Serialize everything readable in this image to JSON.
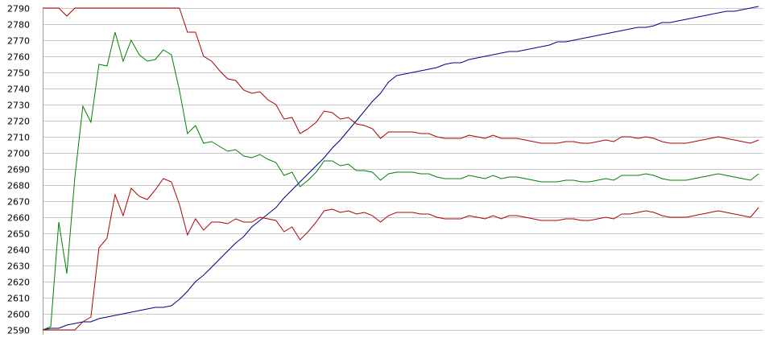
{
  "chart_data": {
    "type": "line",
    "title": "",
    "xlabel": "",
    "ylabel": "",
    "ylim": [
      2590,
      2790
    ],
    "yticks": [
      2590,
      2600,
      2610,
      2620,
      2630,
      2640,
      2650,
      2660,
      2670,
      2680,
      2690,
      2700,
      2710,
      2720,
      2730,
      2740,
      2750,
      2760,
      2770,
      2780,
      2790
    ],
    "grid": "horizontal",
    "legend": "none",
    "x": [
      0,
      1,
      2,
      3,
      4,
      5,
      6,
      7,
      8,
      9,
      10,
      11,
      12,
      13,
      14,
      15,
      16,
      17,
      18,
      19,
      20,
      21,
      22,
      23,
      24,
      25,
      26,
      27,
      28,
      29,
      30,
      31,
      32,
      33,
      34,
      35,
      36,
      37,
      38,
      39,
      40,
      41,
      42,
      43,
      44,
      45,
      46,
      47,
      48,
      49,
      50,
      51,
      52,
      53,
      54,
      55,
      56,
      57,
      58,
      59,
      60,
      61,
      62,
      63,
      64,
      65,
      66,
      67,
      68,
      69,
      70,
      71,
      72,
      73,
      74,
      75,
      76,
      77,
      78,
      79,
      80,
      81,
      82,
      83,
      84,
      85,
      86,
      87,
      88,
      89
    ],
    "series": [
      {
        "color": "#00008b",
        "values": [
          2590,
          2591,
          2591,
          2593,
          2594,
          2595,
          2595,
          2597,
          2598,
          2599,
          2600,
          2601,
          2602,
          2603,
          2604,
          2604,
          2605,
          2609,
          2614,
          2620,
          2624,
          2629,
          2634,
          2639,
          2644,
          2648,
          2654,
          2658,
          2662,
          2666,
          2672,
          2677,
          2682,
          2687,
          2692,
          2697,
          2703,
          2708,
          2714,
          2720,
          2726,
          2732,
          2737,
          2744,
          2748,
          2749,
          2750,
          2751,
          2752,
          2753,
          2755,
          2756,
          2756,
          2758,
          2759,
          2760,
          2761,
          2762,
          2763,
          2763,
          2764,
          2765,
          2766,
          2767,
          2769,
          2769,
          2770,
          2771,
          2772,
          2773,
          2774,
          2775,
          2776,
          2777,
          2778,
          2778,
          2779,
          2781,
          2781,
          2782,
          2783,
          2784,
          2785,
          2786,
          2787,
          2788,
          2788,
          2789,
          2790,
          2791
        ]
      },
      {
        "color": "#b00000",
        "values": [
          2790,
          2790,
          2790,
          2785,
          2790,
          2790,
          2790,
          2790,
          2790,
          2790,
          2790,
          2790,
          2790,
          2790,
          2790,
          2790,
          2790,
          2790,
          2775,
          2775,
          2760,
          2757,
          2751,
          2746,
          2745,
          2739,
          2737,
          2738,
          2733,
          2730,
          2721,
          2722,
          2712,
          2715,
          2719,
          2726,
          2725,
          2721,
          2722,
          2718,
          2717,
          2715,
          2709,
          2713,
          2713,
          2713,
          2713,
          2712,
          2712,
          2710,
          2709,
          2709,
          2709,
          2711,
          2710,
          2709,
          2711,
          2709,
          2709,
          2709,
          2708,
          2707,
          2706,
          2706,
          2706,
          2707,
          2707,
          2706,
          2706,
          2707,
          2708,
          2707,
          2710,
          2710,
          2709,
          2710,
          2709,
          2707,
          2706,
          2706,
          2706,
          2707,
          2708,
          2709,
          2710,
          2709,
          2708,
          2707,
          2706,
          2708
        ]
      },
      {
        "color": "#008000",
        "values": [
          2590,
          2592,
          2657,
          2625,
          2685,
          2729,
          2719,
          2755,
          2754,
          2775,
          2757,
          2770,
          2761,
          2757,
          2758,
          2764,
          2761,
          2739,
          2712,
          2717,
          2706,
          2707,
          2704,
          2701,
          2702,
          2698,
          2697,
          2699,
          2696,
          2694,
          2686,
          2688,
          2679,
          2683,
          2688,
          2695,
          2695,
          2692,
          2693,
          2689,
          2689,
          2688,
          2683,
          2687,
          2688,
          2688,
          2688,
          2687,
          2687,
          2685,
          2684,
          2684,
          2684,
          2686,
          2685,
          2684,
          2686,
          2684,
          2685,
          2685,
          2684,
          2683,
          2682,
          2682,
          2682,
          2683,
          2683,
          2682,
          2682,
          2683,
          2684,
          2683,
          2686,
          2686,
          2686,
          2687,
          2686,
          2684,
          2683,
          2683,
          2683,
          2684,
          2685,
          2686,
          2687,
          2686,
          2685,
          2684,
          2683,
          2687
        ]
      },
      {
        "color": "#b00000",
        "values": [
          2590,
          2590,
          2590,
          2590,
          2590,
          2595,
          2598,
          2641,
          2647,
          2674,
          2661,
          2678,
          2673,
          2671,
          2677,
          2684,
          2682,
          2668,
          2649,
          2659,
          2652,
          2657,
          2657,
          2656,
          2659,
          2657,
          2657,
          2660,
          2659,
          2658,
          2651,
          2654,
          2646,
          2651,
          2657,
          2664,
          2665,
          2663,
          2664,
          2662,
          2663,
          2661,
          2657,
          2661,
          2663,
          2663,
          2663,
          2662,
          2662,
          2660,
          2659,
          2659,
          2659,
          2661,
          2660,
          2659,
          2661,
          2659,
          2661,
          2661,
          2660,
          2659,
          2658,
          2658,
          2658,
          2659,
          2659,
          2658,
          2658,
          2659,
          2660,
          2659,
          2662,
          2662,
          2663,
          2664,
          2663,
          2661,
          2660,
          2660,
          2660,
          2661,
          2662,
          2663,
          2664,
          2663,
          2662,
          2661,
          2660,
          2666
        ]
      }
    ]
  }
}
